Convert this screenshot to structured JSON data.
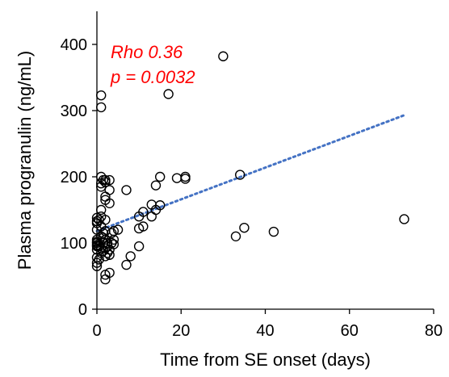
{
  "chart_data": {
    "type": "scatter",
    "title": "",
    "xlabel": "Time from SE onset (days)",
    "ylabel": "Plasma progranulin (ng/mL)",
    "xlim": [
      0,
      80
    ],
    "ylim": [
      0,
      450
    ],
    "x_ticks": [
      0,
      20,
      40,
      60,
      80
    ],
    "y_ticks": [
      0,
      100,
      200,
      300,
      400
    ],
    "grid": false,
    "legend": "none",
    "annotations": [
      "Rho 0.36",
      "p = 0.0032"
    ],
    "annotation_color": "#ff0000",
    "marker": "open-circle",
    "marker_color": "#000000",
    "series": [
      {
        "points": [
          [
            0,
            65
          ],
          [
            0,
            70
          ],
          [
            0,
            78
          ],
          [
            0,
            90
          ],
          [
            0,
            95
          ],
          [
            0,
            97
          ],
          [
            0,
            100
          ],
          [
            0,
            102
          ],
          [
            0,
            105
          ],
          [
            0,
            120
          ],
          [
            0,
            130
          ],
          [
            0,
            133
          ],
          [
            0,
            138
          ],
          [
            0.5,
            75
          ],
          [
            0.5,
            95
          ],
          [
            0.5,
            135
          ],
          [
            1,
            85
          ],
          [
            1,
            92
          ],
          [
            1,
            110
          ],
          [
            1,
            125
          ],
          [
            1,
            140
          ],
          [
            1,
            150
          ],
          [
            1,
            185
          ],
          [
            1,
            190
          ],
          [
            1,
            200
          ],
          [
            1,
            305
          ],
          [
            1,
            323
          ],
          [
            1.5,
            88
          ],
          [
            1.5,
            100
          ],
          [
            1.5,
            108
          ],
          [
            1.5,
            115
          ],
          [
            1.5,
            195
          ],
          [
            2,
            45
          ],
          [
            2,
            52
          ],
          [
            2,
            80
          ],
          [
            2,
            92
          ],
          [
            2,
            105
          ],
          [
            2,
            118
          ],
          [
            2,
            135
          ],
          [
            2,
            165
          ],
          [
            2,
            170
          ],
          [
            2,
            192
          ],
          [
            2,
            195
          ],
          [
            2.5,
            85
          ],
          [
            2.5,
            95
          ],
          [
            2.5,
            100
          ],
          [
            3,
            55
          ],
          [
            3,
            82
          ],
          [
            3,
            90
          ],
          [
            3,
            160
          ],
          [
            3,
            180
          ],
          [
            3,
            195
          ],
          [
            3.5,
            100
          ],
          [
            3.5,
            115
          ],
          [
            4,
            98
          ],
          [
            4,
            105
          ],
          [
            4,
            118
          ],
          [
            5,
            120
          ],
          [
            7,
            67
          ],
          [
            7,
            180
          ],
          [
            8,
            80
          ],
          [
            10,
            95
          ],
          [
            10,
            122
          ],
          [
            10,
            140
          ],
          [
            11,
            125
          ],
          [
            11,
            147
          ],
          [
            13,
            140
          ],
          [
            13,
            158
          ],
          [
            14,
            150
          ],
          [
            14,
            187
          ],
          [
            15,
            157
          ],
          [
            15,
            200
          ],
          [
            17,
            325
          ],
          [
            19,
            198
          ],
          [
            21,
            197
          ],
          [
            21,
            200
          ],
          [
            30,
            382
          ],
          [
            33,
            110
          ],
          [
            34,
            203
          ],
          [
            35,
            123
          ],
          [
            42,
            117
          ],
          [
            73,
            136
          ]
        ]
      }
    ],
    "trendline": {
      "style": "dotted",
      "color": "#4472c4",
      "x": [
        0,
        73
      ],
      "y": [
        118,
        293
      ]
    }
  }
}
